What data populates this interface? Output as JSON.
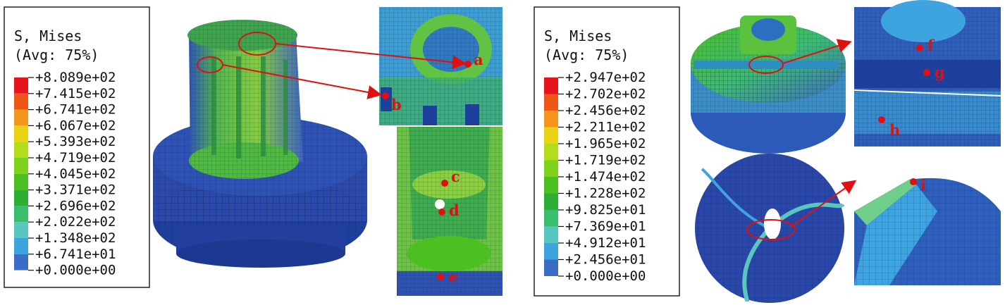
{
  "colors": {
    "scale": [
      "#e8141c",
      "#ee5616",
      "#f4961c",
      "#e8d214",
      "#b2dc1c",
      "#7ed21e",
      "#4cc021",
      "#2fae36",
      "#39be6e",
      "#5ac6c0",
      "#3ea4e0",
      "#3b6cc6",
      "#1f3f9c"
    ],
    "annotation": "#e01010"
  },
  "left_panel": {
    "legend": {
      "title_line1": "S, Mises",
      "title_line2": "(Avg: 75%)",
      "ticks": [
        "+8.089e+02",
        "+7.415e+02",
        "+6.741e+02",
        "+6.067e+02",
        "+5.393e+02",
        "+4.719e+02",
        "+4.045e+02",
        "+3.371e+02",
        "+2.696e+02",
        "+2.022e+02",
        "+1.348e+02",
        "+6.741e+01",
        "+0.000e+00"
      ]
    },
    "points": [
      "a",
      "b",
      "c",
      "d",
      "e"
    ]
  },
  "right_panel": {
    "legend": {
      "title_line1": "S, Mises",
      "title_line2": "(Avg: 75%)",
      "ticks": [
        "+2.947e+02",
        "+2.702e+02",
        "+2.456e+02",
        "+2.211e+02",
        "+1.965e+02",
        "+1.719e+02",
        "+1.474e+02",
        "+1.228e+02",
        "+9.825e+01",
        "+7.369e+01",
        "+4.912e+01",
        "+2.456e+01",
        "+0.000e+00"
      ]
    },
    "points": [
      "f",
      "g",
      "h",
      "i"
    ]
  }
}
